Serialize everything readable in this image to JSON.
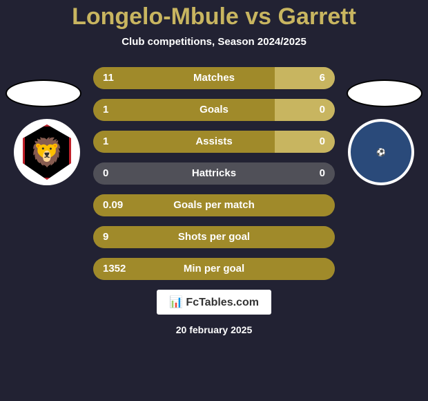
{
  "title": "Longelo-Mbule vs Garrett",
  "subtitle": "Club competitions, Season 2024/2025",
  "colors": {
    "background": "#222233",
    "title_color": "#c8b560",
    "text_color": "#ffffff",
    "bar_bg": "#505058",
    "bar_left": "#a08a2a",
    "bar_right": "#c8b560"
  },
  "bars": [
    {
      "label": "Matches",
      "left_val": "11",
      "right_val": "6",
      "left_pct": 75,
      "right_pct": 25,
      "show_right": true
    },
    {
      "label": "Goals",
      "left_val": "1",
      "right_val": "0",
      "left_pct": 75,
      "right_pct": 25,
      "show_right": true
    },
    {
      "label": "Assists",
      "left_val": "1",
      "right_val": "0",
      "left_pct": 75,
      "right_pct": 25,
      "show_right": true
    },
    {
      "label": "Hattricks",
      "left_val": "0",
      "right_val": "0",
      "left_pct": 0,
      "right_pct": 0,
      "show_right": false
    },
    {
      "label": "Goals per match",
      "left_val": "0.09",
      "right_val": "",
      "left_pct": 100,
      "right_pct": 0,
      "show_right": false
    },
    {
      "label": "Shots per goal",
      "left_val": "9",
      "right_val": "",
      "left_pct": 100,
      "right_pct": 0,
      "show_right": false
    },
    {
      "label": "Min per goal",
      "left_val": "1352",
      "right_val": "",
      "left_pct": 100,
      "right_pct": 0,
      "show_right": false
    }
  ],
  "footer": {
    "logo_text": "FcTables.com",
    "date": "20 february 2025"
  },
  "badges": {
    "left_emoji": "🦁",
    "right_text": "⚽"
  }
}
